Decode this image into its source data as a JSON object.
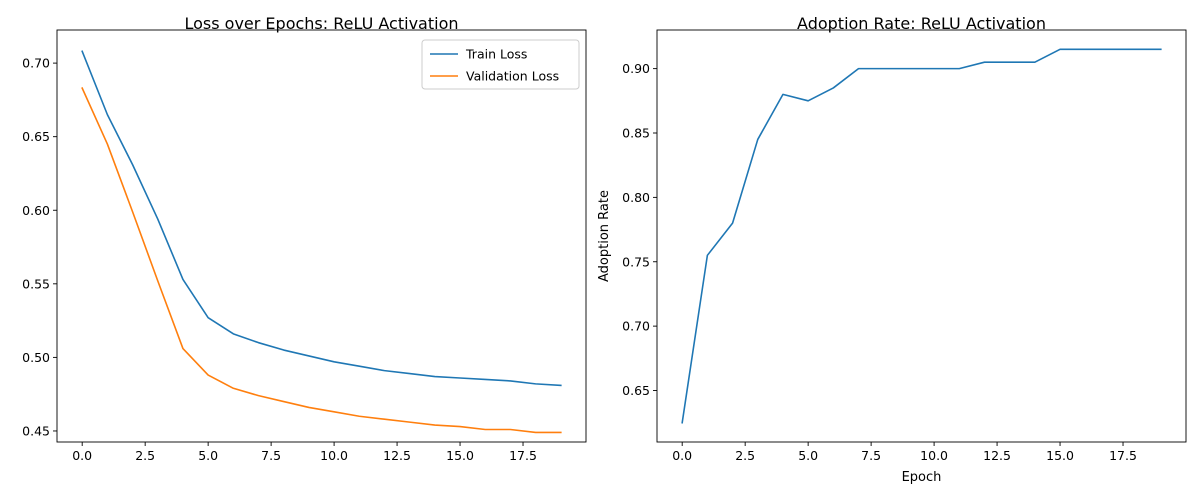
{
  "chart_data": [
    {
      "type": "line",
      "title": "Loss over Epochs: ReLU Activation",
      "xlabel": "",
      "ylabel": "",
      "xlim": [
        -1.0,
        20.0
      ],
      "ylim": [
        0.4425,
        0.7225
      ],
      "xticks": [
        0.0,
        2.5,
        5.0,
        7.5,
        10.0,
        12.5,
        15.0,
        17.5
      ],
      "xtick_labels": [
        "0.0",
        "2.5",
        "5.0",
        "7.5",
        "10.0",
        "12.5",
        "15.0",
        "17.5"
      ],
      "yticks": [
        0.45,
        0.5,
        0.55,
        0.6,
        0.65,
        0.7
      ],
      "ytick_labels": [
        "0.45",
        "0.50",
        "0.55",
        "0.60",
        "0.65",
        "0.70"
      ],
      "grid": false,
      "legend_position": "top-right",
      "x": [
        0,
        1,
        2,
        3,
        4,
        5,
        6,
        7,
        8,
        9,
        10,
        11,
        12,
        13,
        14,
        15,
        16,
        17,
        18,
        19
      ],
      "series": [
        {
          "name": "Train Loss",
          "color": "#1f77b4",
          "values": [
            0.708,
            0.665,
            0.631,
            0.594,
            0.553,
            0.527,
            0.516,
            0.51,
            0.505,
            0.501,
            0.497,
            0.494,
            0.491,
            0.489,
            0.487,
            0.486,
            0.485,
            0.484,
            0.482,
            0.481
          ]
        },
        {
          "name": "Validation Loss",
          "color": "#ff7f0e",
          "values": [
            0.683,
            0.645,
            0.599,
            0.552,
            0.506,
            0.488,
            0.479,
            0.474,
            0.47,
            0.466,
            0.463,
            0.46,
            0.458,
            0.456,
            0.454,
            0.453,
            0.451,
            0.451,
            0.449,
            0.449
          ]
        }
      ]
    },
    {
      "type": "line",
      "title": "Adoption Rate: ReLU Activation",
      "xlabel": "Epoch",
      "ylabel": "Adoption Rate",
      "xlim": [
        -1.0,
        20.0
      ],
      "ylim": [
        0.61,
        0.93
      ],
      "xticks": [
        0.0,
        2.5,
        5.0,
        7.5,
        10.0,
        12.5,
        15.0,
        17.5
      ],
      "xtick_labels": [
        "0.0",
        "2.5",
        "5.0",
        "7.5",
        "10.0",
        "12.5",
        "15.0",
        "17.5"
      ],
      "yticks": [
        0.65,
        0.7,
        0.75,
        0.8,
        0.85,
        0.9
      ],
      "ytick_labels": [
        "0.65",
        "0.70",
        "0.75",
        "0.80",
        "0.85",
        "0.90"
      ],
      "grid": false,
      "x": [
        0,
        1,
        2,
        3,
        4,
        5,
        6,
        7,
        8,
        9,
        10,
        11,
        12,
        13,
        14,
        15,
        16,
        17,
        18,
        19
      ],
      "series": [
        {
          "color": "#1f77b4",
          "values": [
            0.625,
            0.755,
            0.78,
            0.845,
            0.88,
            0.875,
            0.885,
            0.9,
            0.9,
            0.9,
            0.9,
            0.9,
            0.905,
            0.905,
            0.905,
            0.915,
            0.915,
            0.915,
            0.915,
            0.915
          ]
        }
      ]
    }
  ]
}
